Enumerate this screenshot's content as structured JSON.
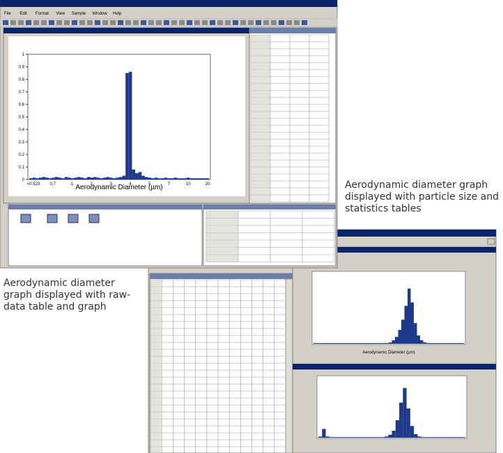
{
  "main_window": {
    "menu": [
      "File",
      "Edit",
      "Format",
      "View",
      "Sample",
      "Window",
      "Help"
    ],
    "graph": {
      "x_axis_label": "Aerodynamic Diameter (µm)",
      "ylim": [
        0,
        1
      ],
      "yticks": [
        0,
        0.1,
        0.2,
        0.3,
        0.4,
        0.5,
        0.6,
        0.7,
        0.8,
        0.9,
        1
      ],
      "xtick_labels": [
        "<0.523",
        "0.7",
        "1",
        "2",
        "3",
        "4",
        "5",
        "7",
        "10",
        "20"
      ],
      "values": [
        0.01,
        0.015,
        0.01,
        0.015,
        0.02,
        0.015,
        0.01,
        0.015,
        0.02,
        0.015,
        0.01,
        0.02,
        0.015,
        0.01,
        0.015,
        0.02,
        0.015,
        0.01,
        0.02,
        0.015,
        0.02,
        0.015,
        0.01,
        0.015,
        0.02,
        0.015,
        0.01,
        0.015,
        0.02,
        0.03,
        0.85,
        0.86,
        0.08,
        0.05,
        0.06,
        0.03,
        0.02,
        0.015,
        0.01,
        0.015,
        0.01,
        0.01,
        0.015,
        0.01,
        0.01,
        0.015,
        0.01,
        0.01,
        0.01,
        0.015,
        0.01,
        0.01,
        0.01,
        0.01,
        0.01,
        0.01
      ]
    }
  },
  "raw_window": {
    "graph": {
      "x_axis_label": "Aerodynamic Diameter (µm)",
      "ylim": [
        0,
        1
      ],
      "values": [
        0.01,
        0.01,
        0.01,
        0.01,
        0.01,
        0.01,
        0.01,
        0.01,
        0.01,
        0.01,
        0.01,
        0.01,
        0.01,
        0.01,
        0.01,
        0.01,
        0.01,
        0.01,
        0.01,
        0.01,
        0.01,
        0.01,
        0.01,
        0.01,
        0.02,
        0.05,
        0.1,
        0.2,
        0.35,
        0.55,
        0.8,
        0.6,
        0.3,
        0.12,
        0.05,
        0.02,
        0.01,
        0.01,
        0.01,
        0.01,
        0.01,
        0.01,
        0.01,
        0.01,
        0.01,
        0.01,
        0.01,
        0.01
      ]
    },
    "size_graph": {
      "ylim": [
        0,
        1
      ],
      "values": [
        0.02,
        0.15,
        0.02,
        0.01,
        0.01,
        0.01,
        0.01,
        0.01,
        0.01,
        0.01,
        0.01,
        0.01,
        0.01,
        0.01,
        0.01,
        0.01,
        0.01,
        0.01,
        0.02,
        0.05,
        0.12,
        0.3,
        0.6,
        0.85,
        0.5,
        0.2,
        0.06,
        0.02,
        0.01,
        0.01,
        0.01,
        0.01,
        0.01,
        0.01,
        0.01,
        0.01,
        0.01,
        0.01,
        0.01,
        0.01
      ]
    }
  },
  "captions": [
    "Aerodynamic diameter graph displayed with particle size and statistics tables",
    "Aerodynamic diameter graph displayed with raw-data table and graph"
  ]
}
